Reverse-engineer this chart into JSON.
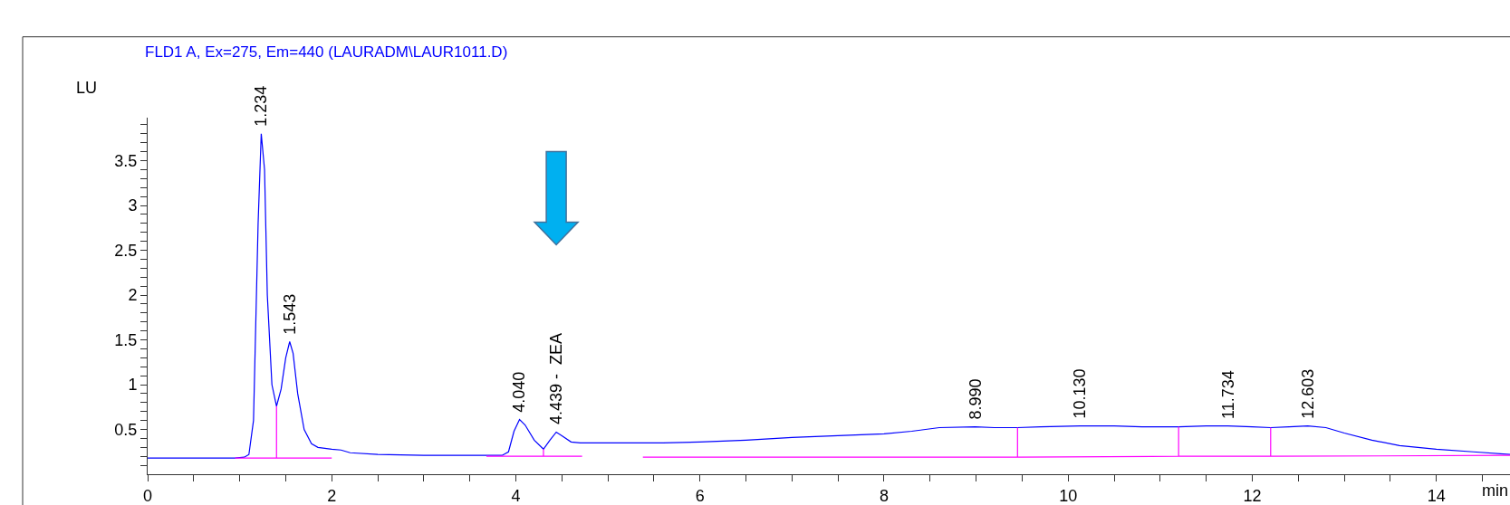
{
  "chart_data": {
    "type": "line",
    "title": "FLD1 A, Ex=275, Em=440 (LAURADM\\LAUR1011.D)",
    "xlabel": "min",
    "ylabel": "LU",
    "xlim": [
      0,
      14.8
    ],
    "xticks": [
      0,
      {
        "value": 0.5,
        "label": null
      },
      {
        "value": 1,
        "label": null
      },
      {
        "value": 1.5,
        "label": null
      },
      2,
      {
        "value": 2.5,
        "label": null
      },
      {
        "value": 3,
        "label": null
      },
      {
        "value": 3.5,
        "label": null
      },
      4,
      {
        "value": 4.5,
        "label": null
      },
      {
        "value": 5,
        "label": null
      },
      {
        "value": 5.5,
        "label": null
      },
      6,
      {
        "value": 6.5,
        "label": null
      },
      {
        "value": 7,
        "label": null
      },
      {
        "value": 7.5,
        "label": null
      },
      8,
      {
        "value": 8.5,
        "label": null
      },
      {
        "value": 9,
        "label": null
      },
      {
        "value": 9.5,
        "label": null
      },
      10,
      {
        "value": 10.5,
        "label": null
      },
      {
        "value": 11,
        "label": null
      },
      {
        "value": 11.5,
        "label": null
      },
      12,
      {
        "value": 12.5,
        "label": null
      },
      {
        "value": 13,
        "label": null
      },
      {
        "value": 13.5,
        "label": null
      },
      14,
      {
        "value": 14.5,
        "label": null
      }
    ],
    "ylim": [
      0,
      3.98
    ],
    "yticks": [
      {
        "value": 0.1,
        "label": null
      },
      {
        "value": 0.2,
        "label": null
      },
      {
        "value": 0.3,
        "label": null
      },
      {
        "value": 0.4,
        "label": null
      },
      0.5,
      {
        "value": 0.6,
        "label": null
      },
      {
        "value": 0.7,
        "label": null
      },
      {
        "value": 0.8,
        "label": null
      },
      {
        "value": 0.9,
        "label": null
      },
      1,
      {
        "value": 1.1,
        "label": null
      },
      {
        "value": 1.2,
        "label": null
      },
      {
        "value": 1.3,
        "label": null
      },
      {
        "value": 1.4,
        "label": null
      },
      1.5,
      {
        "value": 1.6,
        "label": null
      },
      {
        "value": 1.7,
        "label": null
      },
      {
        "value": 1.8,
        "label": null
      },
      {
        "value": 1.9,
        "label": null
      },
      2,
      {
        "value": 2.1,
        "label": null
      },
      {
        "value": 2.2,
        "label": null
      },
      {
        "value": 2.3,
        "label": null
      },
      {
        "value": 2.4,
        "label": null
      },
      2.5,
      {
        "value": 2.6,
        "label": null
      },
      {
        "value": 2.7,
        "label": null
      },
      {
        "value": 2.8,
        "label": null
      },
      {
        "value": 2.9,
        "label": null
      },
      3,
      {
        "value": 3.1,
        "label": null
      },
      {
        "value": 3.2,
        "label": null
      },
      {
        "value": 3.3,
        "label": null
      },
      {
        "value": 3.4,
        "label": null
      },
      3.5,
      {
        "value": 3.6,
        "label": null
      },
      {
        "value": 3.7,
        "label": null
      },
      {
        "value": 3.8,
        "label": null
      },
      {
        "value": 3.9,
        "label": null
      }
    ],
    "marker": "none",
    "line_style": "solid",
    "series": [
      {
        "color": "#0000ff",
        "x": [
          0,
          0.95,
          1.05,
          1.1,
          1.15,
          1.2,
          1.234,
          1.27,
          1.3,
          1.35,
          1.4,
          1.45,
          1.5,
          1.543,
          1.58,
          1.63,
          1.7,
          1.78,
          1.85,
          2.0,
          2.1,
          2.2,
          2.5,
          3.0,
          3.5,
          3.85,
          3.92,
          3.98,
          4.04,
          4.1,
          4.2,
          4.3,
          4.37,
          4.439,
          4.5,
          4.6,
          4.7,
          5.4,
          5.6,
          6.0,
          6.5,
          7.0,
          7.5,
          8.0,
          8.3,
          8.6,
          8.99,
          9.2,
          9.45,
          9.7,
          10.13,
          10.5,
          10.8,
          11.2,
          11.5,
          11.734,
          12.0,
          12.2,
          12.4,
          12.603,
          12.8,
          13.0,
          13.3,
          13.6,
          14.0,
          14.4,
          14.8
        ],
        "values": [
          0.18,
          0.18,
          0.19,
          0.22,
          0.6,
          2.8,
          3.8,
          3.4,
          2.0,
          1.0,
          0.76,
          0.95,
          1.3,
          1.48,
          1.35,
          0.9,
          0.5,
          0.34,
          0.3,
          0.28,
          0.27,
          0.24,
          0.22,
          0.21,
          0.21,
          0.21,
          0.25,
          0.48,
          0.61,
          0.55,
          0.38,
          0.28,
          0.38,
          0.47,
          0.43,
          0.36,
          0.35,
          0.35,
          0.35,
          0.36,
          0.38,
          0.41,
          0.43,
          0.45,
          0.48,
          0.52,
          0.53,
          0.52,
          0.52,
          0.53,
          0.54,
          0.54,
          0.53,
          0.53,
          0.54,
          0.54,
          0.53,
          0.52,
          0.53,
          0.54,
          0.52,
          0.46,
          0.38,
          0.32,
          0.28,
          0.25,
          0.22
        ]
      },
      {
        "color": "#ff00ff",
        "x": [
          0.95,
          1.4,
          1.4,
          1.4,
          2.0
        ],
        "values": [
          0.18,
          0.18,
          0.76,
          0.18,
          0.18
        ]
      },
      {
        "color": "#ff00ff",
        "x": [
          3.68,
          4.3,
          4.3,
          4.3,
          4.72
        ],
        "values": [
          0.2,
          0.2,
          0.28,
          0.2,
          0.2
        ]
      },
      {
        "color": "#ff00ff",
        "x": [
          5.38,
          9.45,
          9.45,
          9.45,
          11.2,
          11.2,
          11.2,
          12.2,
          12.2,
          12.2,
          14.8
        ],
        "values": [
          0.19,
          0.19,
          0.52,
          0.19,
          0.2,
          0.53,
          0.2,
          0.2,
          0.52,
          0.2,
          0.21
        ]
      }
    ],
    "annotations": [
      {
        "text": "1.234",
        "x": 1.234,
        "y": 3.8
      },
      {
        "text": "1.543",
        "x": 1.543,
        "y": 1.48
      },
      {
        "text": "4.040",
        "x": 4.04,
        "y": 0.61
      },
      {
        "text": "4.439 -  ZEA",
        "x": 4.439,
        "y": 0.47
      },
      {
        "text": "8.990",
        "x": 8.99,
        "y": 0.53
      },
      {
        "text": "10.130",
        "x": 10.13,
        "y": 0.54
      },
      {
        "text": "11.734",
        "x": 11.734,
        "y": 0.54
      },
      {
        "text": "12.603",
        "x": 12.603,
        "y": 0.54
      }
    ]
  }
}
